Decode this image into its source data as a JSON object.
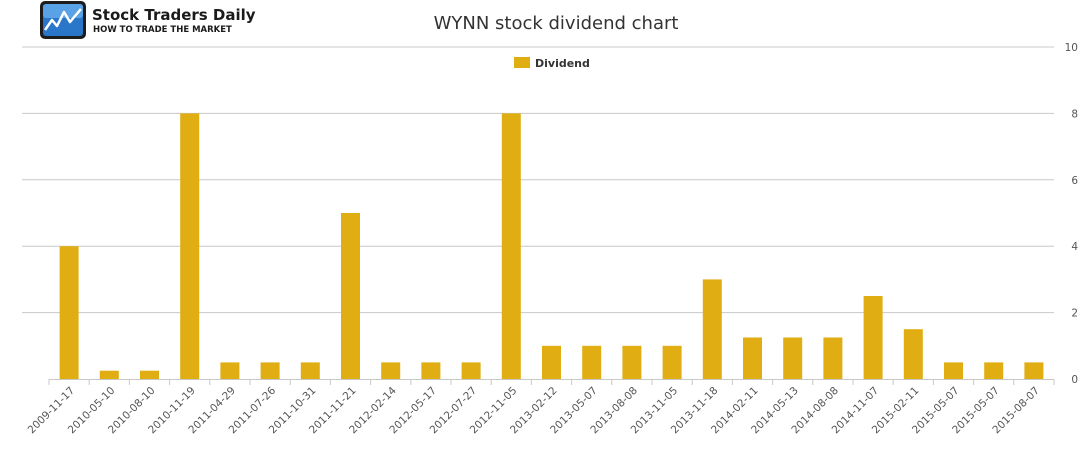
{
  "logo": {
    "name": "Stock Traders Daily",
    "tagline": "HOW TO TRADE THE MARKET",
    "icon": "stock-chart-logo-icon"
  },
  "chart_data": {
    "type": "bar",
    "title": "WYNN stock dividend chart",
    "xlabel": "",
    "ylabel": "",
    "categories": [
      "2009-11-17",
      "2010-05-10",
      "2010-08-10",
      "2010-11-19",
      "2011-04-29",
      "2011-07-26",
      "2011-10-31",
      "2011-11-21",
      "2012-02-14",
      "2012-05-17",
      "2012-07-27",
      "2012-11-05",
      "2013-02-12",
      "2013-05-07",
      "2013-08-08",
      "2013-11-05",
      "2013-11-18",
      "2014-02-11",
      "2014-05-13",
      "2014-08-08",
      "2014-11-07",
      "2015-02-11",
      "2015-05-07",
      "2015-05-07",
      "2015-08-07"
    ],
    "series": [
      {
        "name": "Dividend",
        "color": "#E0AE13",
        "values": [
          4,
          0.25,
          0.25,
          8,
          0.5,
          0.5,
          0.5,
          5,
          0.5,
          0.5,
          0.5,
          8,
          1,
          1,
          1,
          1,
          3,
          1.25,
          1.25,
          1.25,
          2.5,
          1.5,
          0.5,
          0.5,
          0.5
        ]
      }
    ],
    "ylim": [
      0,
      10
    ],
    "yticks": [
      "0",
      "2",
      "4",
      "6",
      "8",
      "10"
    ],
    "grid": true,
    "y_axis_side": "right",
    "legend_position": "top-center",
    "grid_color": "#C8C8C8"
  }
}
